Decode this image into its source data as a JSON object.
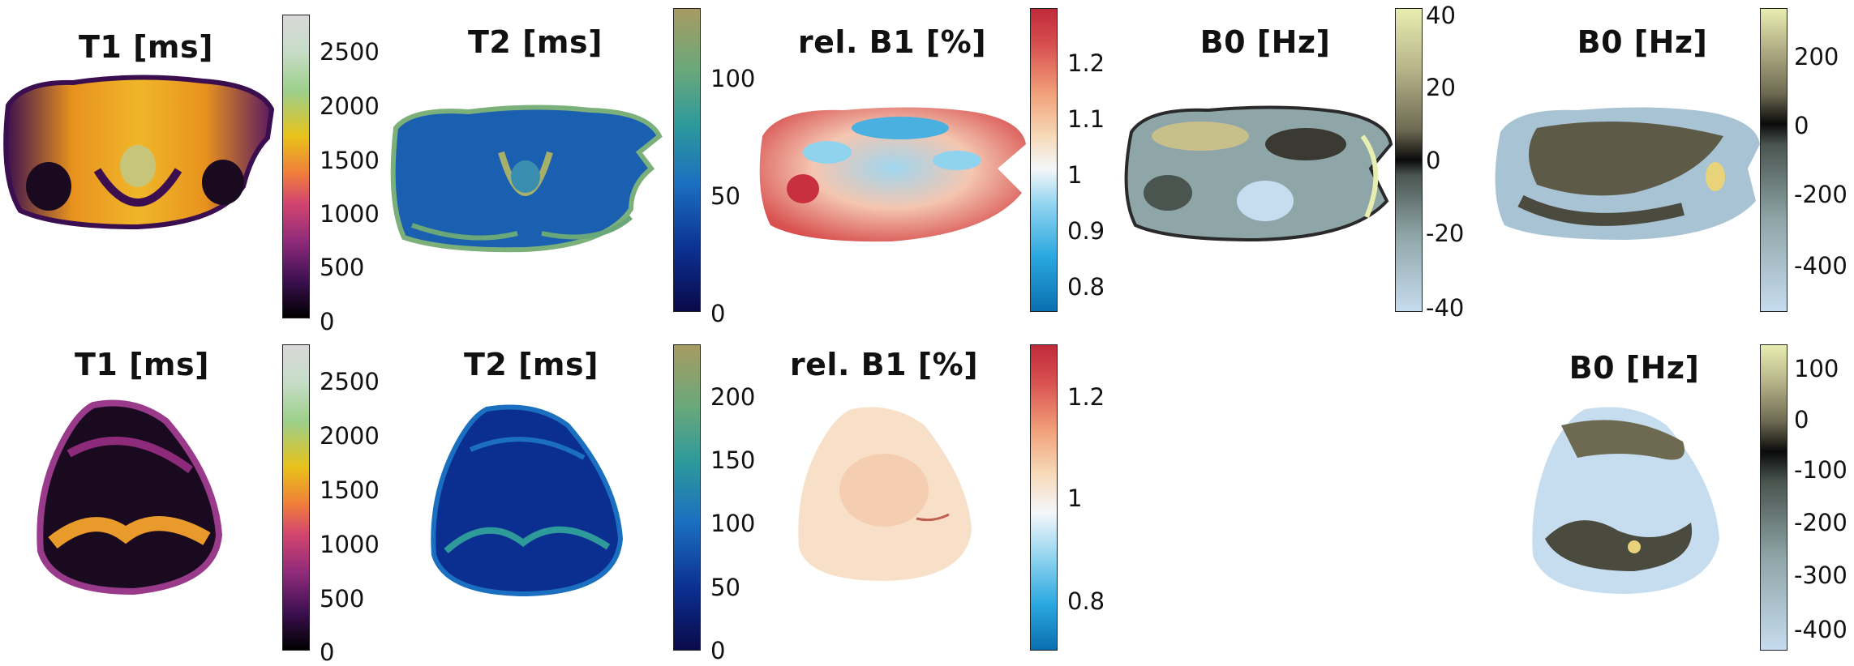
{
  "panels": [
    {
      "id": "r1c1",
      "title": "T1 [ms]",
      "colormap": "t1",
      "shape": "pelvis",
      "ticks": [
        "2500",
        "2000",
        "1500",
        "1000",
        "500",
        "0"
      ]
    },
    {
      "id": "r1c2",
      "title": "T2 [ms]",
      "colormap": "t2",
      "shape": "pelvis-cut",
      "ticks": [
        "100",
        "50",
        "0"
      ]
    },
    {
      "id": "r1c3",
      "title": "rel. B1 [%]",
      "colormap": "b1",
      "shape": "pelvis-cut",
      "ticks": [
        "1.2",
        "1.1",
        "1",
        "0.9",
        "0.8"
      ]
    },
    {
      "id": "r1c4",
      "title": "B0 [Hz]",
      "colormap": "b0",
      "shape": "pelvis-cut",
      "ticks": [
        "40",
        "20",
        "0",
        "-20",
        "-40"
      ]
    },
    {
      "id": "r1c5",
      "title": "B0 [Hz]",
      "colormap": "b0",
      "shape": "pelvis",
      "ticks": [
        "200",
        "0",
        "-200",
        "-400"
      ]
    },
    {
      "id": "r2c1",
      "title": "T1 [ms]",
      "colormap": "t1",
      "shape": "knee",
      "ticks": [
        "2500",
        "2000",
        "1500",
        "1000",
        "500",
        "0"
      ]
    },
    {
      "id": "r2c2",
      "title": "T2 [ms]",
      "colormap": "t2",
      "shape": "knee",
      "ticks": [
        "200",
        "150",
        "100",
        "50",
        "0"
      ]
    },
    {
      "id": "r2c3",
      "title": "rel. B1 [%]",
      "colormap": "b1",
      "shape": "knee",
      "ticks": [
        "1.2",
        "1",
        "0.8"
      ]
    },
    {
      "id": "r2c5",
      "title": "B0 [Hz]",
      "colormap": "b0",
      "shape": "knee",
      "ticks": [
        "100",
        "0",
        "-100",
        "-200",
        "-300",
        "-400"
      ]
    }
  ],
  "colors": {
    "t1": [
      "#000000",
      "#3b0f4f",
      "#8e2a7a",
      "#d4456f",
      "#f07f3a",
      "#e8c21a",
      "#b9dba5",
      "#d8d8d8"
    ],
    "t2": [
      "#0a0a4a",
      "#0b3fa0",
      "#1b6fc0",
      "#2e9a9a",
      "#6aa87a",
      "#a79b62"
    ],
    "b1": [
      "#0a6fb0",
      "#2aa8e0",
      "#8fd3ef",
      "#f4f7fa",
      "#f6d9b8",
      "#f1a07a",
      "#d85050",
      "#c02a3a"
    ],
    "b0": [
      "#c6dcef",
      "#8fa6a8",
      "#4a5550",
      "#0a0a0a",
      "#6e6a52",
      "#b7b48a",
      "#e8edb0"
    ]
  }
}
